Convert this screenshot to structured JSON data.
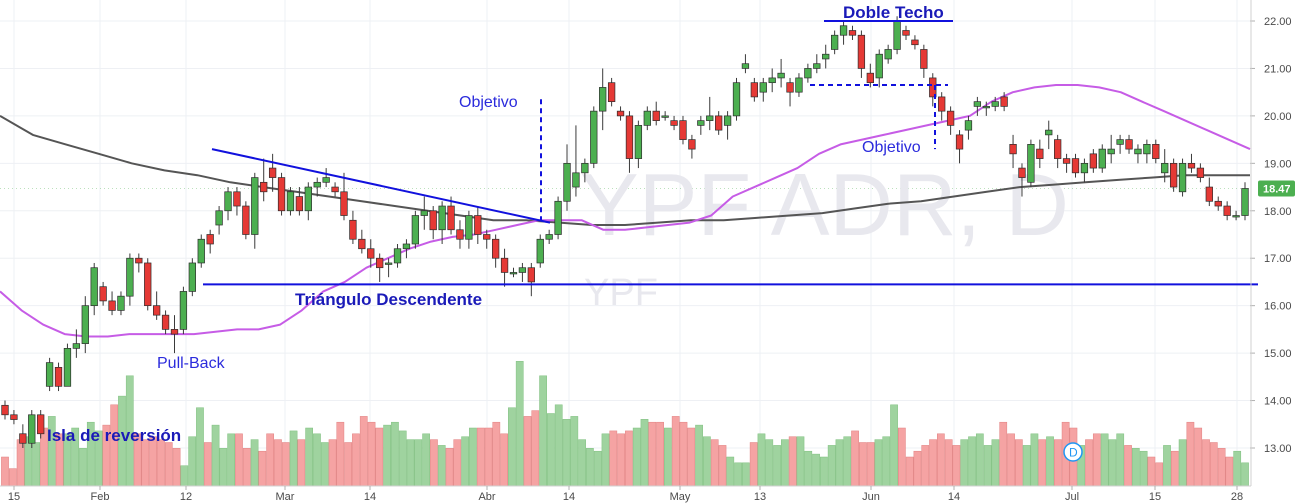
{
  "chart_data": {
    "type": "candlestick",
    "watermark": {
      "symbol": "YPF ADR, D",
      "sub": "YPF"
    },
    "y_axis": {
      "side": "right",
      "ticks": [
        "22.00",
        "21.00",
        "20.00",
        "19.00",
        "18.00",
        "17.00",
        "16.00",
        "15.00",
        "14.00",
        "13.00"
      ],
      "ylim": [
        12.1,
        22.4
      ]
    },
    "x_axis": {
      "ticks": [
        "15",
        "Feb",
        "12",
        "Mar",
        "14",
        "Abr",
        "14",
        "May",
        "13",
        "Jun",
        "14",
        "Jul",
        "15",
        "28"
      ]
    },
    "last_price": {
      "label": "18.47",
      "value": 18.47,
      "color": "#4caf50"
    },
    "colors": {
      "up": "#4caf50",
      "down": "#e53935",
      "wick": "#3a3a3a",
      "vol_up": "#9fd39f",
      "vol_down": "#f5a3a3",
      "ma_short": "#c65ce6",
      "ma_long": "#555555",
      "annotation": "#1111dd"
    },
    "candles": [
      [
        13.9,
        14.0,
        13.6,
        13.7
      ],
      [
        13.7,
        13.8,
        13.5,
        13.6
      ],
      [
        13.3,
        13.5,
        13.0,
        13.1
      ],
      [
        13.1,
        13.8,
        13.0,
        13.7
      ],
      [
        13.7,
        13.8,
        13.2,
        13.3
      ],
      [
        14.3,
        14.9,
        14.2,
        14.8
      ],
      [
        14.7,
        14.8,
        14.2,
        14.3
      ],
      [
        14.3,
        15.2,
        14.3,
        15.1
      ],
      [
        15.1,
        15.5,
        14.9,
        15.2
      ],
      [
        15.2,
        16.2,
        15.0,
        16.0
      ],
      [
        16.0,
        16.9,
        15.8,
        16.8
      ],
      [
        16.4,
        16.5,
        16.0,
        16.1
      ],
      [
        16.1,
        16.3,
        15.8,
        15.9
      ],
      [
        15.9,
        16.3,
        15.8,
        16.2
      ],
      [
        16.2,
        17.1,
        16.0,
        17.0
      ],
      [
        17.0,
        17.1,
        16.7,
        16.9
      ],
      [
        16.9,
        17.0,
        15.9,
        16.0
      ],
      [
        16.0,
        16.3,
        15.7,
        15.8
      ],
      [
        15.8,
        15.9,
        15.4,
        15.5
      ],
      [
        15.5,
        15.8,
        15.0,
        15.4
      ],
      [
        15.5,
        16.4,
        15.4,
        16.3
      ],
      [
        16.3,
        17.0,
        16.2,
        16.9
      ],
      [
        16.9,
        17.5,
        16.8,
        17.4
      ],
      [
        17.5,
        17.6,
        17.1,
        17.3
      ],
      [
        17.7,
        18.1,
        17.5,
        18.0
      ],
      [
        18.0,
        18.5,
        17.8,
        18.4
      ],
      [
        18.4,
        18.5,
        17.9,
        18.1
      ],
      [
        18.1,
        18.2,
        17.4,
        17.5
      ],
      [
        17.5,
        18.8,
        17.2,
        18.7
      ],
      [
        18.6,
        19.1,
        18.2,
        18.4
      ],
      [
        18.9,
        19.2,
        18.4,
        18.7
      ],
      [
        18.7,
        18.8,
        17.9,
        18.0
      ],
      [
        18.0,
        18.5,
        17.9,
        18.4
      ],
      [
        18.3,
        18.5,
        17.9,
        18.0
      ],
      [
        18.0,
        18.6,
        17.8,
        18.5
      ],
      [
        18.5,
        18.7,
        18.3,
        18.6
      ],
      [
        18.6,
        18.9,
        18.5,
        18.7
      ],
      [
        18.5,
        18.6,
        18.3,
        18.4
      ],
      [
        18.4,
        18.8,
        17.8,
        17.9
      ],
      [
        17.8,
        18.0,
        17.3,
        17.4
      ],
      [
        17.4,
        17.6,
        17.1,
        17.2
      ],
      [
        17.2,
        17.4,
        16.8,
        17.0
      ],
      [
        17.0,
        17.1,
        16.5,
        16.8
      ],
      [
        16.9,
        17.0,
        16.6,
        16.9
      ],
      [
        16.9,
        17.3,
        16.8,
        17.2
      ],
      [
        17.2,
        17.4,
        17.0,
        17.3
      ],
      [
        17.3,
        18.0,
        17.2,
        17.9
      ],
      [
        17.9,
        18.3,
        17.6,
        18.0
      ],
      [
        18.0,
        18.1,
        17.4,
        17.6
      ],
      [
        17.6,
        18.2,
        17.3,
        18.1
      ],
      [
        18.1,
        18.3,
        17.5,
        17.6
      ],
      [
        17.6,
        17.8,
        17.2,
        17.4
      ],
      [
        17.4,
        18.0,
        17.2,
        17.9
      ],
      [
        17.9,
        18.1,
        17.3,
        17.5
      ],
      [
        17.5,
        17.6,
        17.2,
        17.4
      ],
      [
        17.4,
        17.5,
        16.8,
        17.0
      ],
      [
        17.0,
        17.2,
        16.4,
        16.7
      ],
      [
        16.7,
        16.8,
        16.6,
        16.7
      ],
      [
        16.7,
        16.9,
        16.5,
        16.8
      ],
      [
        16.8,
        16.9,
        16.2,
        16.5
      ],
      [
        16.9,
        17.5,
        16.8,
        17.4
      ],
      [
        17.4,
        17.6,
        17.3,
        17.5
      ],
      [
        17.5,
        18.3,
        17.4,
        18.2
      ],
      [
        18.2,
        19.4,
        18.0,
        19.0
      ],
      [
        18.5,
        19.8,
        18.3,
        18.8
      ],
      [
        18.8,
        19.1,
        18.6,
        19.0
      ],
      [
        19.0,
        20.2,
        18.9,
        20.1
      ],
      [
        20.1,
        21.0,
        19.7,
        20.6
      ],
      [
        20.7,
        20.8,
        20.2,
        20.3
      ],
      [
        20.1,
        20.2,
        19.9,
        20.0
      ],
      [
        20.0,
        20.1,
        18.8,
        19.1
      ],
      [
        19.1,
        19.9,
        18.9,
        19.8
      ],
      [
        19.8,
        20.2,
        19.7,
        20.1
      ],
      [
        20.1,
        20.3,
        19.8,
        19.9
      ],
      [
        20.0,
        20.1,
        19.9,
        20.0
      ],
      [
        19.9,
        20.0,
        19.7,
        19.8
      ],
      [
        19.9,
        20.0,
        19.4,
        19.5
      ],
      [
        19.5,
        19.6,
        19.1,
        19.3
      ],
      [
        19.8,
        20.0,
        19.6,
        19.9
      ],
      [
        19.9,
        20.4,
        19.7,
        20.0
      ],
      [
        20.0,
        20.1,
        19.6,
        19.7
      ],
      [
        19.8,
        20.1,
        19.5,
        20.0
      ],
      [
        20.0,
        20.8,
        19.9,
        20.7
      ],
      [
        21.0,
        21.3,
        20.9,
        21.1
      ],
      [
        20.7,
        20.8,
        20.3,
        20.4
      ],
      [
        20.5,
        20.8,
        20.3,
        20.7
      ],
      [
        20.7,
        21.0,
        20.5,
        20.8
      ],
      [
        20.8,
        21.2,
        20.6,
        20.9
      ],
      [
        20.7,
        20.8,
        20.2,
        20.5
      ],
      [
        20.5,
        20.9,
        20.4,
        20.8
      ],
      [
        20.8,
        21.1,
        20.7,
        21.0
      ],
      [
        21.0,
        21.3,
        20.9,
        21.1
      ],
      [
        21.2,
        21.5,
        21.0,
        21.3
      ],
      [
        21.4,
        21.8,
        21.3,
        21.7
      ],
      [
        21.7,
        22.0,
        21.5,
        21.9
      ],
      [
        21.8,
        21.9,
        21.6,
        21.7
      ],
      [
        21.7,
        21.8,
        20.8,
        21.0
      ],
      [
        20.9,
        21.1,
        20.6,
        20.7
      ],
      [
        20.8,
        21.4,
        20.6,
        21.3
      ],
      [
        21.2,
        21.5,
        21.1,
        21.4
      ],
      [
        21.4,
        22.1,
        21.3,
        22.0
      ],
      [
        21.8,
        21.9,
        21.6,
        21.7
      ],
      [
        21.6,
        21.7,
        21.4,
        21.5
      ],
      [
        21.4,
        21.5,
        20.8,
        21.0
      ],
      [
        20.8,
        20.9,
        20.2,
        20.4
      ],
      [
        20.4,
        20.5,
        19.9,
        20.1
      ],
      [
        20.1,
        20.2,
        19.6,
        19.8
      ],
      [
        19.6,
        19.7,
        19.0,
        19.3
      ],
      [
        19.7,
        20.0,
        19.5,
        19.9
      ],
      [
        20.2,
        20.4,
        20.0,
        20.3
      ],
      [
        20.2,
        20.3,
        20.0,
        20.2
      ],
      [
        20.2,
        20.4,
        20.1,
        20.3
      ],
      [
        20.4,
        20.5,
        20.1,
        20.2
      ],
      [
        19.4,
        19.6,
        18.9,
        19.2
      ],
      [
        18.9,
        19.0,
        18.3,
        18.7
      ],
      [
        18.6,
        19.5,
        18.5,
        19.4
      ],
      [
        19.3,
        19.5,
        18.9,
        19.1
      ],
      [
        19.6,
        19.9,
        19.3,
        19.7
      ],
      [
        19.5,
        19.6,
        18.9,
        19.1
      ],
      [
        19.1,
        19.2,
        18.8,
        19.0
      ],
      [
        19.1,
        19.2,
        18.7,
        18.8
      ],
      [
        18.8,
        19.1,
        18.6,
        19.0
      ],
      [
        19.2,
        19.3,
        18.8,
        18.9
      ],
      [
        18.9,
        19.4,
        18.8,
        19.3
      ],
      [
        19.2,
        19.6,
        19.0,
        19.3
      ],
      [
        19.4,
        19.6,
        19.2,
        19.5
      ],
      [
        19.5,
        19.6,
        19.2,
        19.3
      ],
      [
        19.2,
        19.4,
        19.0,
        19.3
      ],
      [
        19.2,
        19.5,
        19.0,
        19.4
      ],
      [
        19.4,
        19.5,
        19.0,
        19.1
      ],
      [
        18.8,
        19.3,
        18.6,
        19.0
      ],
      [
        19.0,
        19.1,
        18.4,
        18.5
      ],
      [
        18.4,
        19.1,
        18.3,
        19.0
      ],
      [
        19.0,
        19.2,
        18.8,
        18.9
      ],
      [
        18.9,
        19.0,
        18.6,
        18.7
      ],
      [
        18.5,
        18.7,
        18.1,
        18.2
      ],
      [
        18.2,
        18.3,
        18.0,
        18.1
      ],
      [
        18.1,
        18.2,
        17.8,
        17.9
      ],
      [
        17.9,
        18.0,
        17.8,
        17.9
      ],
      [
        17.9,
        18.6,
        17.8,
        18.47
      ]
    ],
    "volume": [
      0.1,
      0.06,
      0.16,
      0.17,
      0.15,
      0.2,
      0.24,
      0.18,
      0.18,
      0.2,
      0.13,
      0.22,
      0.19,
      0.21,
      0.28,
      0.31,
      0.38,
      0.18,
      0.16,
      0.17,
      0.16,
      0.15,
      0.13,
      0.07,
      0.17,
      0.27,
      0.15,
      0.21,
      0.13,
      0.18,
      0.18,
      0.13,
      0.16,
      0.12,
      0.18,
      0.16,
      0.15,
      0.19,
      0.16,
      0.2,
      0.18,
      0.15,
      0.16,
      0.22,
      0.15,
      0.18,
      0.24,
      0.22,
      0.2,
      0.21,
      0.22,
      0.19,
      0.16,
      0.16,
      0.18,
      0.16,
      0.14,
      0.13,
      0.16,
      0.17,
      0.2,
      0.2,
      0.2,
      0.22,
      0.18,
      0.27,
      0.43,
      0.24,
      0.26,
      0.38,
      0.25,
      0.28,
      0.23,
      0.24,
      0.16,
      0.13,
      0.12,
      0.18,
      0.19,
      0.18,
      0.19,
      0.2,
      0.23,
      0.22,
      0.22,
      0.2,
      0.24,
      0.22,
      0.2,
      0.21,
      0.17,
      0.16,
      0.14,
      0.1,
      0.08,
      0.08,
      0.15,
      0.18,
      0.16,
      0.14,
      0.16,
      0.17,
      0.17,
      0.12,
      0.11,
      0.1,
      0.14,
      0.16,
      0.17,
      0.19,
      0.15,
      0.15,
      0.16,
      0.17,
      0.28,
      0.2,
      0.1,
      0.12,
      0.14,
      0.16,
      0.18,
      0.16,
      0.14,
      0.16,
      0.17,
      0.18,
      0.14,
      0.16,
      0.22,
      0.18,
      0.16,
      0.14,
      0.18,
      0.16,
      0.17,
      0.16,
      0.22,
      0.2,
      0.14,
      0.16,
      0.18,
      0.18,
      0.16,
      0.18,
      0.14,
      0.13,
      0.12,
      0.1,
      0.08,
      0.14,
      0.12,
      0.16,
      0.22,
      0.2,
      0.16,
      0.15,
      0.13,
      0.1,
      0.12,
      0.08
    ],
    "ma_short": [
      16.3,
      15.9,
      15.6,
      15.4,
      15.35,
      15.35,
      15.4,
      15.4,
      15.4,
      15.4,
      15.45,
      15.5,
      15.5,
      15.6,
      15.9,
      16.3,
      16.5,
      16.8,
      17.0,
      17.2,
      17.35,
      17.45,
      17.5,
      17.6,
      17.7,
      17.8,
      17.8,
      17.8,
      17.6,
      17.6,
      17.65,
      17.7,
      17.75,
      17.9,
      18.3,
      18.5,
      18.7,
      18.9,
      19.2,
      19.4,
      19.5,
      19.6,
      19.7,
      19.8,
      19.9,
      20.0,
      20.3,
      20.5,
      20.6,
      20.65,
      20.65,
      20.6,
      20.5,
      20.3,
      20.1,
      19.9,
      19.7,
      19.5,
      19.3
    ],
    "ma_long": [
      20.0,
      19.6,
      19.4,
      19.2,
      19.0,
      18.85,
      18.75,
      18.6,
      18.5,
      18.4,
      18.3,
      18.2,
      18.1,
      18.0,
      17.9,
      17.8,
      17.8,
      17.75,
      17.7,
      17.7,
      17.75,
      17.8,
      17.8,
      17.85,
      17.9,
      17.95,
      18.05,
      18.15,
      18.2,
      18.3,
      18.4,
      18.5,
      18.55,
      18.6,
      18.65,
      18.7,
      18.75,
      18.75,
      18.75
    ],
    "annotations": {
      "doble_techo": "Doble Techo",
      "objetivo_1": "Objetivo",
      "objetivo_2": "Objetivo",
      "triangulo": "Triángulo Descendente",
      "pull_back": "Pull-Back",
      "isla": "Isla de reversión",
      "event_marker": "D"
    }
  }
}
